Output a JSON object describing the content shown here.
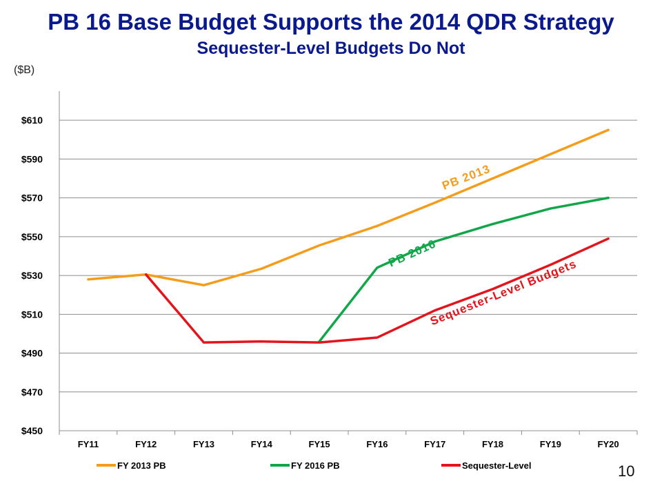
{
  "slide": {
    "title": "PB 16 Base Budget Supports the 2014 QDR Strategy",
    "subtitle": "Sequester-Level Budgets Do Not",
    "unit_label": "($B)",
    "page_number": "10"
  },
  "chart_data": {
    "type": "line",
    "ylabel": "($B)",
    "ylim": [
      450,
      625
    ],
    "y_ticks": [
      450,
      470,
      490,
      510,
      530,
      550,
      570,
      590,
      610
    ],
    "y_tick_labels": [
      "$450",
      "$470",
      "$490",
      "$510",
      "$530",
      "$550",
      "$570",
      "$590",
      "$610"
    ],
    "categories": [
      "FY11",
      "FY12",
      "FY13",
      "FY14",
      "FY15",
      "FY16",
      "FY17",
      "FY18",
      "FY19",
      "FY20"
    ],
    "grid": "horizontal",
    "legend_position": "bottom",
    "series": [
      {
        "name": "FY 2013 PB",
        "annotation": "PB 2013",
        "color": "#f59d1b",
        "values": [
          528,
          530.5,
          525,
          533.5,
          545.5,
          555.5,
          567.5,
          580,
          592.5,
          605
        ]
      },
      {
        "name": "FY 2016 PB",
        "annotation": "PB 2016",
        "color": "#11a64a",
        "values": [
          null,
          null,
          null,
          null,
          496,
          534,
          547.5,
          556.5,
          564.5,
          570
        ]
      },
      {
        "name": "Sequester-Level",
        "annotation": "Sequester-Level Budgets",
        "color": "#e3141b",
        "values": [
          null,
          530.5,
          495.5,
          496,
          495.5,
          498,
          512,
          523,
          535.5,
          549
        ]
      }
    ]
  }
}
